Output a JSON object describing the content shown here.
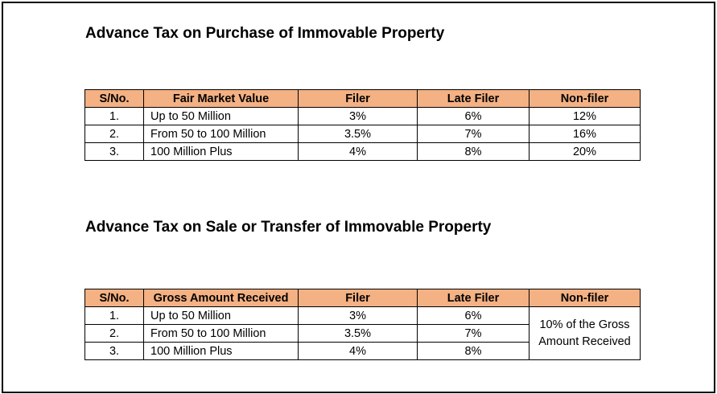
{
  "header_color": "#F4B183",
  "purchase": {
    "title": "Advance Tax on Purchase of Immovable Property",
    "headers": [
      "S/No.",
      "Fair Market Value",
      "Filer",
      "Late Filer",
      "Non-filer"
    ],
    "rows": [
      [
        "1.",
        "Up to 50 Million",
        "3%",
        "6%",
        "12%"
      ],
      [
        "2.",
        "From 50 to 100 Million",
        "3.5%",
        "7%",
        "16%"
      ],
      [
        "3.",
        "100 Million Plus",
        "4%",
        "8%",
        "20%"
      ]
    ]
  },
  "sale": {
    "title": "Advance Tax on Sale or Transfer of Immovable Property",
    "headers": [
      "S/No.",
      "Gross Amount Received",
      "Filer",
      "Late Filer",
      "Non-filer"
    ],
    "rows": [
      [
        "1.",
        "Up to 50 Million",
        "3%",
        "6%"
      ],
      [
        "2.",
        "From 50 to 100 Million",
        "3.5%",
        "7%"
      ],
      [
        "3.",
        "100 Million Plus",
        "4%",
        "8%"
      ]
    ],
    "non_filer_merged": "10% of the Gross Amount Received"
  }
}
